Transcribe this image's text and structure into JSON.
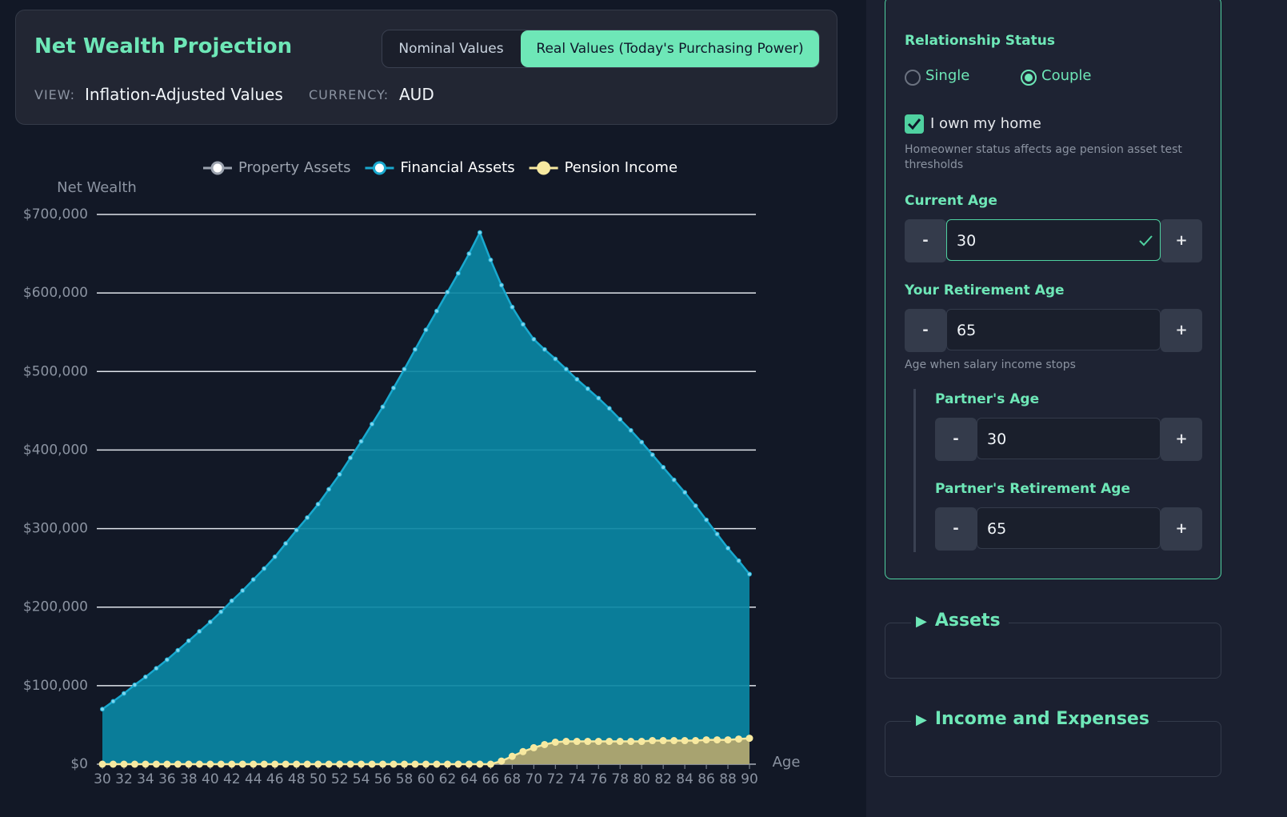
{
  "header": {
    "title": "Net Wealth Projection",
    "toggle": [
      "Nominal Values",
      "Real Values (Today's Purchasing Power)"
    ],
    "toggle_active": 1,
    "view_label": "VIEW:",
    "view_value": "Inflation-Adjusted Values",
    "currency_label": "CURRENCY:",
    "currency_value": "AUD"
  },
  "chart_data": {
    "type": "area",
    "y_label": "Net Wealth",
    "x_label": "Age",
    "x": [
      30,
      31,
      32,
      33,
      34,
      35,
      36,
      37,
      38,
      39,
      40,
      41,
      42,
      43,
      44,
      45,
      46,
      47,
      48,
      49,
      50,
      51,
      52,
      53,
      54,
      55,
      56,
      57,
      58,
      59,
      60,
      61,
      62,
      63,
      64,
      65,
      66,
      67,
      68,
      69,
      70,
      71,
      72,
      73,
      74,
      75,
      76,
      77,
      78,
      79,
      80,
      81,
      82,
      83,
      84,
      85,
      86,
      87,
      88,
      89,
      90
    ],
    "xlim": [
      30,
      90
    ],
    "xticks": [
      30,
      32,
      34,
      36,
      38,
      40,
      42,
      44,
      46,
      48,
      50,
      52,
      54,
      56,
      58,
      60,
      62,
      64,
      66,
      68,
      70,
      72,
      74,
      76,
      78,
      80,
      82,
      84,
      86,
      88,
      90
    ],
    "ylim": [
      0,
      700000
    ],
    "yticks": [
      {
        "value": 0,
        "label": "$0"
      },
      {
        "value": 100000,
        "label": "$100,000"
      },
      {
        "value": 200000,
        "label": "$200,000"
      },
      {
        "value": 300000,
        "label": "$300,000"
      },
      {
        "value": 400000,
        "label": "$400,000"
      },
      {
        "value": 500000,
        "label": "$500,000"
      },
      {
        "value": 600000,
        "label": "$600,000"
      },
      {
        "value": 700000,
        "label": "$700,000"
      }
    ],
    "grid": true,
    "series": [
      {
        "name": "Property Assets",
        "color": "#9ca3af",
        "hidden": true
      },
      {
        "name": "Financial Assets",
        "color": "#19a9cf",
        "fill_color": "#0a87a3",
        "values": [
          70000,
          80000,
          90000,
          101000,
          111000,
          122000,
          133000,
          145000,
          157000,
          169000,
          181000,
          194000,
          208000,
          221000,
          235000,
          249000,
          264000,
          281000,
          298000,
          314000,
          331000,
          350000,
          369000,
          390000,
          411000,
          433000,
          455000,
          479000,
          503000,
          528000,
          553000,
          577000,
          601000,
          625000,
          650000,
          677000,
          642000,
          610000,
          582000,
          560000,
          541000,
          528000,
          516000,
          503000,
          490000,
          478000,
          466000,
          453000,
          439000,
          425000,
          410000,
          394000,
          378000,
          362000,
          346000,
          329000,
          311000,
          293000,
          275000,
          259000,
          242000
        ]
      },
      {
        "name": "Pension Income",
        "color": "#f7e9a0",
        "fill_color": "#b6a66c",
        "values": [
          0,
          0,
          0,
          0,
          0,
          0,
          0,
          0,
          0,
          0,
          0,
          0,
          0,
          0,
          0,
          0,
          0,
          0,
          0,
          0,
          0,
          0,
          0,
          0,
          0,
          0,
          0,
          0,
          0,
          0,
          0,
          0,
          0,
          0,
          0,
          0,
          0,
          4000,
          10000,
          16000,
          21000,
          25000,
          28000,
          29000,
          29000,
          29000,
          29000,
          29000,
          29000,
          29000,
          29000,
          30000,
          30000,
          30000,
          30000,
          30000,
          31000,
          31000,
          31000,
          32000,
          33000
        ]
      }
    ]
  },
  "panel": {
    "relationship_label": "Relationship Status",
    "relationship_options": [
      "Single",
      "Couple"
    ],
    "relationship_selected": 1,
    "home_label": "I own my home",
    "home_checked": true,
    "home_hint": "Homeowner status affects age pension asset test thresholds",
    "minus": "-",
    "plus": "+",
    "fields": [
      {
        "label": "Current Age",
        "value": 30
      },
      {
        "label": "Your Retirement Age",
        "value": 65,
        "hint": "Age when salary income stops"
      }
    ],
    "partner_fields": [
      {
        "label": "Partner's Age",
        "value": 30
      },
      {
        "label": "Partner's Retirement Age",
        "value": 65
      }
    ],
    "sections": [
      "Assets",
      "Income and Expenses"
    ]
  }
}
